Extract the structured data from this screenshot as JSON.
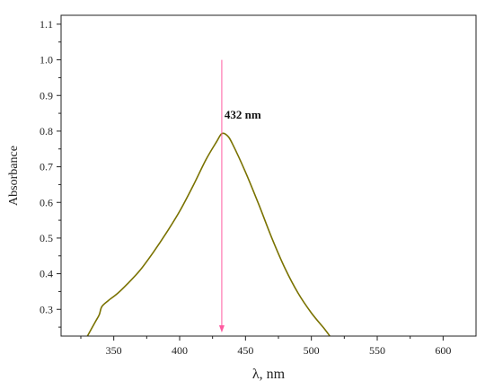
{
  "chart_data": {
    "type": "line",
    "xlabel": "λ, nm",
    "ylabel": "Absorbance",
    "xlim": [
      310,
      625
    ],
    "ylim": [
      0.225,
      1.125
    ],
    "x_ticks": [
      350,
      400,
      450,
      500,
      550,
      600
    ],
    "y_ticks": [
      0.3,
      0.4,
      0.5,
      0.6,
      0.7,
      0.8,
      0.9,
      1.0,
      1.1
    ],
    "x_tick_labels": [
      "350",
      "400",
      "450",
      "500",
      "550",
      "600"
    ],
    "y_tick_labels": [
      "0.3",
      "0.4",
      "0.5",
      "0.6",
      "0.7",
      "0.8",
      "0.9",
      "1.0",
      "1.1"
    ],
    "series": [
      {
        "color": "#7a7200",
        "x": [
          330,
          336,
          339,
          341,
          346,
          353,
          360,
          370,
          380,
          390,
          400,
          410,
          420,
          428,
          432,
          436,
          440,
          450,
          460,
          470,
          480,
          490,
          500,
          510,
          514
        ],
        "y": [
          0.225,
          0.265,
          0.285,
          0.308,
          0.325,
          0.345,
          0.37,
          0.41,
          0.46,
          0.515,
          0.575,
          0.645,
          0.72,
          0.77,
          0.793,
          0.788,
          0.765,
          0.685,
          0.595,
          0.5,
          0.415,
          0.345,
          0.29,
          0.245,
          0.225
        ]
      }
    ],
    "annotations": [
      {
        "text": "432 nm",
        "x": 432,
        "arrow_from_y": 1.0,
        "arrow_to_y": 0.225,
        "arrow_color": "#ff5aa0"
      }
    ],
    "grid": false,
    "legend": "none"
  }
}
